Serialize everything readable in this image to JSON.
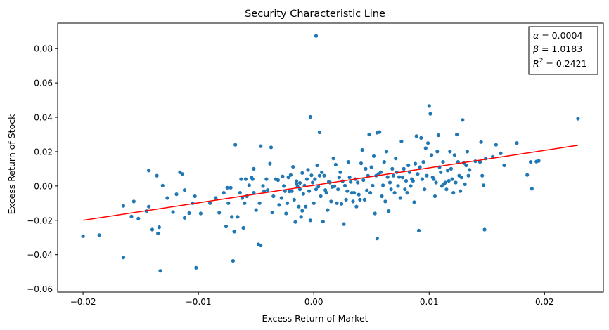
{
  "chart_data": {
    "type": "scatter",
    "title": "Security Characteristic Line",
    "xlabel": "Excess Return of Market",
    "ylabel": "Excess Return of Stock",
    "xlim": [
      -0.0222,
      0.0251
    ],
    "ylim": [
      -0.0618,
      0.0948
    ],
    "x_ticks": [
      -0.02,
      -0.01,
      0.0,
      0.01,
      0.02
    ],
    "x_tick_labels": [
      "−0.02",
      "−0.01",
      "0.00",
      "0.01",
      "0.02"
    ],
    "y_ticks": [
      -0.06,
      -0.04,
      -0.02,
      0.0,
      0.02,
      0.04,
      0.06,
      0.08
    ],
    "y_tick_labels": [
      "−0.06",
      "−0.04",
      "−0.02",
      "0.00",
      "0.02",
      "0.04",
      "0.06",
      "0.08"
    ],
    "grid": false,
    "point_color": "#1f77b4",
    "line_color": "#ff0000",
    "regression_line": {
      "x": [
        -0.02,
        0.0229
      ],
      "y": [
        -0.02,
        0.0237
      ]
    },
    "stats_box": {
      "placement": "top-right",
      "lines": [
        {
          "sym": "α",
          "sup": "",
          "val": " = 0.0004"
        },
        {
          "sym": "β",
          "sup": "",
          "val": " = 1.0183"
        },
        {
          "sym": "R",
          "sup": "2",
          "val": " = 0.2421"
        }
      ]
    },
    "points": [
      [
        -0.02,
        -0.0292
      ],
      [
        -0.0186,
        -0.0286
      ],
      [
        -0.0165,
        -0.0416
      ],
      [
        -0.0165,
        -0.0116
      ],
      [
        -0.0158,
        -0.0178
      ],
      [
        -0.0156,
        -0.009
      ],
      [
        -0.0152,
        -0.019
      ],
      [
        -0.0145,
        -0.0146
      ],
      [
        -0.0143,
        -0.012
      ],
      [
        -0.0143,
        0.009
      ],
      [
        -0.014,
        -0.0254
      ],
      [
        -0.0136,
        0.006
      ],
      [
        -0.0135,
        -0.0276
      ],
      [
        -0.0134,
        -0.024
      ],
      [
        -0.0133,
        -0.0494
      ],
      [
        -0.0131,
        0.0002
      ],
      [
        -0.0127,
        -0.007
      ],
      [
        -0.0122,
        -0.0152
      ],
      [
        -0.0119,
        -0.0048
      ],
      [
        -0.0116,
        0.008
      ],
      [
        -0.0114,
        0.007
      ],
      [
        -0.0112,
        -0.0186
      ],
      [
        -0.0112,
        -0.0024
      ],
      [
        -0.0108,
        -0.0158
      ],
      [
        -0.0105,
        -0.01
      ],
      [
        -0.0103,
        -0.006
      ],
      [
        -0.0102,
        -0.0476
      ],
      [
        -0.0098,
        -0.016
      ],
      [
        -0.009,
        -0.01
      ],
      [
        -0.0085,
        -0.007
      ],
      [
        -0.0082,
        -0.0156
      ],
      [
        -0.0078,
        -0.004
      ],
      [
        -0.0076,
        -0.0236
      ],
      [
        -0.0075,
        -0.001
      ],
      [
        -0.0074,
        -0.01
      ],
      [
        -0.0072,
        -0.001
      ],
      [
        -0.0071,
        -0.018
      ],
      [
        -0.007,
        -0.0436
      ],
      [
        -0.0069,
        -0.0266
      ],
      [
        -0.0068,
        0.024
      ],
      [
        -0.0066,
        -0.018
      ],
      [
        -0.0064,
        -0.004
      ],
      [
        -0.0063,
        0.004
      ],
      [
        -0.0062,
        -0.007
      ],
      [
        -0.0061,
        -0.0244
      ],
      [
        -0.006,
        -0.01
      ],
      [
        -0.0059,
        0.004
      ],
      [
        -0.0058,
        -0.006
      ],
      [
        -0.0056,
        0.0004
      ],
      [
        -0.0054,
        0.005
      ],
      [
        -0.0053,
        0.004
      ],
      [
        -0.0052,
        0.01
      ],
      [
        -0.0052,
        -0.004
      ],
      [
        -0.005,
        -0.014
      ],
      [
        -0.0048,
        -0.034
      ],
      [
        -0.0047,
        -0.01
      ],
      [
        -0.0046,
        -0.0346
      ],
      [
        -0.0046,
        0.0232
      ],
      [
        -0.0044,
        0.0
      ],
      [
        -0.0043,
        -0.003
      ],
      [
        -0.0041,
        0.004
      ],
      [
        -0.004,
        -0.0024
      ],
      [
        -0.0038,
        0.013
      ],
      [
        -0.0037,
        0.0225
      ],
      [
        -0.0036,
        -0.0154
      ],
      [
        -0.0035,
        -0.006
      ],
      [
        -0.0033,
        0.004
      ],
      [
        -0.0031,
        0.0034
      ],
      [
        -0.003,
        -0.011
      ],
      [
        -0.0028,
        -0.007
      ],
      [
        -0.0027,
        0.0056
      ],
      [
        -0.0026,
        0.0
      ],
      [
        -0.0025,
        -0.003
      ],
      [
        -0.0024,
        -0.016
      ],
      [
        -0.0023,
        -0.01
      ],
      [
        -0.0022,
        0.005
      ],
      [
        -0.0021,
        -0.0032
      ],
      [
        -0.002,
        0.0064
      ],
      [
        -0.0019,
        -0.003
      ],
      [
        -0.0018,
        0.0112
      ],
      [
        -0.0017,
        -0.008
      ],
      [
        -0.0016,
        -0.021
      ],
      [
        -0.0015,
        0.0028
      ],
      [
        -0.0015,
        0.0012
      ],
      [
        -0.0014,
        -0.0004
      ],
      [
        -0.0013,
        -0.012
      ],
      [
        -0.0012,
        0.0018
      ],
      [
        -0.0012,
        -0.002
      ],
      [
        -0.0011,
        -0.018
      ],
      [
        -0.001,
        -0.0144
      ],
      [
        -0.001,
        0.0076
      ],
      [
        -0.0009,
        -0.0046
      ],
      [
        -0.0008,
        0.0002
      ],
      [
        -0.0007,
        -0.012
      ],
      [
        -0.0006,
        0.004
      ],
      [
        -0.0005,
        0.0094
      ],
      [
        -0.0004,
        -0.003
      ],
      [
        -0.0003,
        -0.02
      ],
      [
        -0.0003,
        0.0402
      ],
      [
        -0.0002,
        0.0062
      ],
      [
        -0.0001,
        0.002
      ],
      [
        0.0,
        -0.01
      ],
      [
        0.0001,
        0.004
      ],
      [
        0.0002,
        -0.002
      ],
      [
        0.0002,
        0.0874
      ],
      [
        0.0003,
        0.012
      ],
      [
        0.0004,
        -0.0004
      ],
      [
        0.0005,
        0.006
      ],
      [
        0.0005,
        0.0312
      ],
      [
        0.0006,
        -0.006
      ],
      [
        0.0007,
        0.008
      ],
      [
        0.0008,
        -0.0208
      ],
      [
        0.0009,
        0.006
      ],
      [
        0.001,
        -0.0024
      ],
      [
        0.0011,
        -0.004
      ],
      [
        0.0012,
        -0.014
      ],
      [
        0.0013,
        0.0024
      ],
      [
        0.0014,
        0.002
      ],
      [
        0.0015,
        -0.009
      ],
      [
        0.0016,
        -0.0006
      ],
      [
        0.0017,
        0.016
      ],
      [
        0.0018,
        -0.0002
      ],
      [
        0.0019,
        0.0124
      ],
      [
        0.002,
        -0.01
      ],
      [
        0.0021,
        -0.002
      ],
      [
        0.0022,
        0.005
      ],
      [
        0.0023,
        0.008
      ],
      [
        0.0024,
        -0.0104
      ],
      [
        0.0025,
        0.0028
      ],
      [
        0.0026,
        -0.0222
      ],
      [
        0.0027,
        0.0002
      ],
      [
        0.0028,
        -0.008
      ],
      [
        0.0029,
        -0.003
      ],
      [
        0.003,
        0.014
      ],
      [
        0.0031,
        0.005
      ],
      [
        0.0032,
        0.0024
      ],
      [
        0.0033,
        -0.004
      ],
      [
        0.0034,
        -0.009
      ],
      [
        0.0035,
        -0.004
      ],
      [
        0.0036,
        0.004
      ],
      [
        0.0037,
        -0.012
      ],
      [
        0.0038,
        0.002
      ],
      [
        0.0039,
        -0.005
      ],
      [
        0.004,
        -0.008
      ],
      [
        0.0041,
        0.0132
      ],
      [
        0.0042,
        0.021
      ],
      [
        0.0043,
        0.0034
      ],
      [
        0.0044,
        -0.008
      ],
      [
        0.0045,
        0.01
      ],
      [
        0.0046,
        -0.0026
      ],
      [
        0.0047,
        0.006
      ],
      [
        0.0048,
        0.03
      ],
      [
        0.0049,
        -0.004
      ],
      [
        0.005,
        0.011
      ],
      [
        0.0051,
        0.0002
      ],
      [
        0.0052,
        0.0174
      ],
      [
        0.0053,
        -0.016
      ],
      [
        0.0054,
        0.006
      ],
      [
        0.0055,
        0.031
      ],
      [
        0.0055,
        -0.0306
      ],
      [
        0.0056,
        0.007
      ],
      [
        0.0057,
        0.0314
      ],
      [
        0.0058,
        0.008
      ],
      [
        0.0059,
        -0.006
      ],
      [
        0.006,
        0.0004
      ],
      [
        0.0061,
        0.014
      ],
      [
        0.0062,
        -0.009
      ],
      [
        0.0063,
        0.02
      ],
      [
        0.0064,
        0.0052
      ],
      [
        0.0065,
        -0.0146
      ],
      [
        0.0066,
        0.002
      ],
      [
        0.0067,
        -0.002
      ],
      [
        0.0068,
        0.01
      ],
      [
        0.0069,
        0.006
      ],
      [
        0.007,
        -0.004
      ],
      [
        0.0071,
        0.016
      ],
      [
        0.0072,
        0.008
      ],
      [
        0.0073,
        0.0
      ],
      [
        0.0074,
        0.0052
      ],
      [
        0.0075,
        -0.007
      ],
      [
        0.0076,
        0.026
      ],
      [
        0.0077,
        0.005
      ],
      [
        0.0078,
        0.01
      ],
      [
        0.0079,
        -0.002
      ],
      [
        0.008,
        0.003
      ],
      [
        0.0081,
        -0.004
      ],
      [
        0.0082,
        0.012
      ],
      [
        0.0083,
        0.008
      ],
      [
        0.0084,
        0.0
      ],
      [
        0.0085,
        0.004
      ],
      [
        0.0086,
        0.003
      ],
      [
        0.0087,
        -0.0094
      ],
      [
        0.0088,
        0.013
      ],
      [
        0.0089,
        0.029
      ],
      [
        0.009,
        0.007
      ],
      [
        0.0091,
        -0.026
      ],
      [
        0.0092,
        0.011
      ],
      [
        0.0093,
        0.028
      ],
      [
        0.0094,
        0.004
      ],
      [
        0.0095,
        0.014
      ],
      [
        0.0096,
        -0.002
      ],
      [
        0.0097,
        0.022
      ],
      [
        0.0098,
        0.006
      ],
      [
        0.0099,
        0.025
      ],
      [
        0.01,
        0.0466
      ],
      [
        0.0101,
        0.042
      ],
      [
        0.0102,
        0.018
      ],
      [
        0.0103,
        0.005
      ],
      [
        0.0104,
        0.004
      ],
      [
        0.0105,
        -0.006
      ],
      [
        0.0106,
        0.002
      ],
      [
        0.0107,
        0.02
      ],
      [
        0.0108,
        0.0296
      ],
      [
        0.0109,
        0.011
      ],
      [
        0.011,
        0.008
      ],
      [
        0.0111,
        0.0
      ],
      [
        0.0112,
        0.014
      ],
      [
        0.0113,
        0.0012
      ],
      [
        0.0114,
        0.002
      ],
      [
        0.0115,
        -0.002
      ],
      [
        0.0116,
        0.009
      ],
      [
        0.0117,
        0.003
      ],
      [
        0.0118,
        0.02
      ],
      [
        0.0119,
        0.01
      ],
      [
        0.012,
        0.004
      ],
      [
        0.0121,
        -0.004
      ],
      [
        0.0122,
        0.018
      ],
      [
        0.0123,
        0.002
      ],
      [
        0.0124,
        0.03
      ],
      [
        0.0125,
        0.014
      ],
      [
        0.0126,
        0.006
      ],
      [
        0.0127,
        -0.003
      ],
      [
        0.0128,
        0.005
      ],
      [
        0.0129,
        0.0384
      ],
      [
        0.013,
        0.0134
      ],
      [
        0.0131,
        0.001
      ],
      [
        0.0132,
        0.012
      ],
      [
        0.0133,
        0.02
      ],
      [
        0.0134,
        0.006
      ],
      [
        0.0135,
        0.0094
      ],
      [
        0.014,
        0.0144
      ],
      [
        0.0144,
        0.014
      ],
      [
        0.0145,
        0.0256
      ],
      [
        0.0146,
        0.006
      ],
      [
        0.0147,
        0.0004
      ],
      [
        0.0148,
        -0.0254
      ],
      [
        0.0149,
        0.016
      ],
      [
        0.0155,
        0.017
      ],
      [
        0.0158,
        0.024
      ],
      [
        0.0162,
        0.019
      ],
      [
        0.0165,
        0.012
      ],
      [
        0.0176,
        0.025
      ],
      [
        0.0185,
        0.0064
      ],
      [
        0.0188,
        0.014
      ],
      [
        0.0189,
        -0.0016
      ],
      [
        0.0193,
        0.0142
      ],
      [
        0.0195,
        0.0146
      ],
      [
        0.0229,
        0.0392
      ]
    ]
  }
}
